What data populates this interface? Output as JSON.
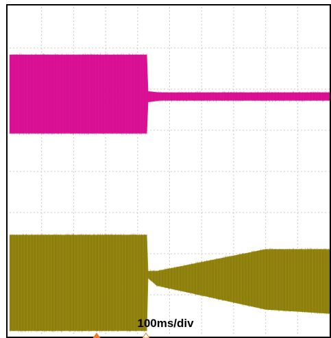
{
  "chart_data": {
    "type": "line",
    "title": "",
    "xlabel": "",
    "ylabel": "",
    "grid": true,
    "timebase_label": "100ms/div",
    "x_divisions": 10,
    "y_divisions": 8,
    "series": [
      {
        "color": "#e4139b",
        "envelope": [
          {
            "t_div": 0.0,
            "high": 6.84,
            "low": 4.92
          },
          {
            "t_div": 4.3,
            "high": 6.84,
            "low": 4.92
          },
          {
            "t_div": 4.3,
            "high": 5.95,
            "low": 5.68
          },
          {
            "t_div": 4.7,
            "high": 5.92,
            "low": 5.72
          },
          {
            "t_div": 10.0,
            "high": 5.92,
            "low": 5.72
          }
        ]
      },
      {
        "color": "#9c8c10",
        "envelope": [
          {
            "t_div": 0.0,
            "high": 2.46,
            "low": 0.12
          },
          {
            "t_div": 4.3,
            "high": 2.46,
            "low": 0.12
          },
          {
            "t_div": 4.3,
            "high": 1.58,
            "low": 1.42
          },
          {
            "t_div": 4.6,
            "high": 1.58,
            "low": 1.22
          },
          {
            "t_div": 8.0,
            "high": 2.11,
            "low": 0.64
          },
          {
            "t_div": 10.0,
            "high": 2.11,
            "low": 0.54
          }
        ]
      }
    ]
  },
  "colors": {
    "channel_1": "#e4139b",
    "channel_2": "#9c8c10",
    "grid": "#c8c8c8",
    "frame": "#000000",
    "trigger_marker": "#e87a2a"
  }
}
